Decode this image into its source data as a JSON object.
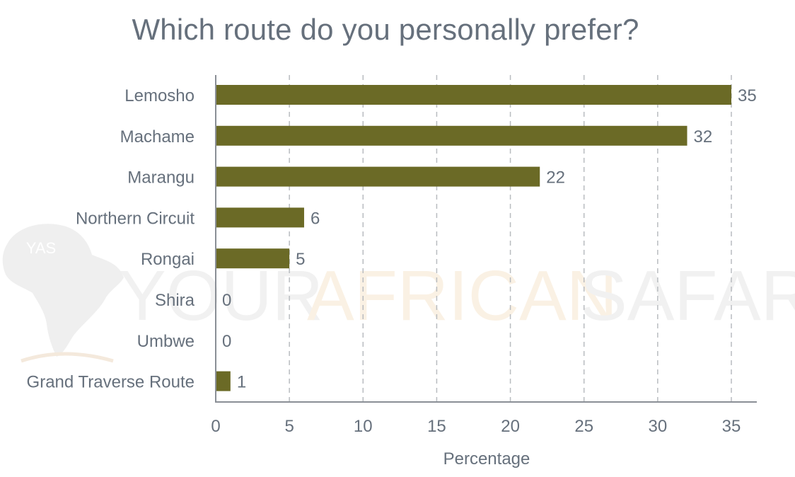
{
  "chart_data": {
    "type": "bar",
    "orientation": "horizontal",
    "title": "Which route do you personally prefer?",
    "xlabel": "Percentage",
    "ylabel": "",
    "categories": [
      "Lemosho",
      "Machame",
      "Marangu",
      "Northern Circuit",
      "Rongai",
      "Shira",
      "Umbwe",
      "Grand Traverse Route"
    ],
    "values": [
      35,
      32,
      22,
      6,
      5,
      0,
      0,
      1
    ],
    "xlim": [
      0,
      37
    ],
    "xticks": [
      0,
      5,
      10,
      15,
      20,
      25,
      30,
      35
    ],
    "grid": "vertical-dashed",
    "legend": "none",
    "bar_color": "#6b6a26",
    "axis_color": "#8a8f96",
    "text_color": "#66707c"
  },
  "watermark": {
    "parts": [
      "YOUR",
      "AFRICAN",
      "SAFARI"
    ],
    "logo_text": "YAS"
  }
}
